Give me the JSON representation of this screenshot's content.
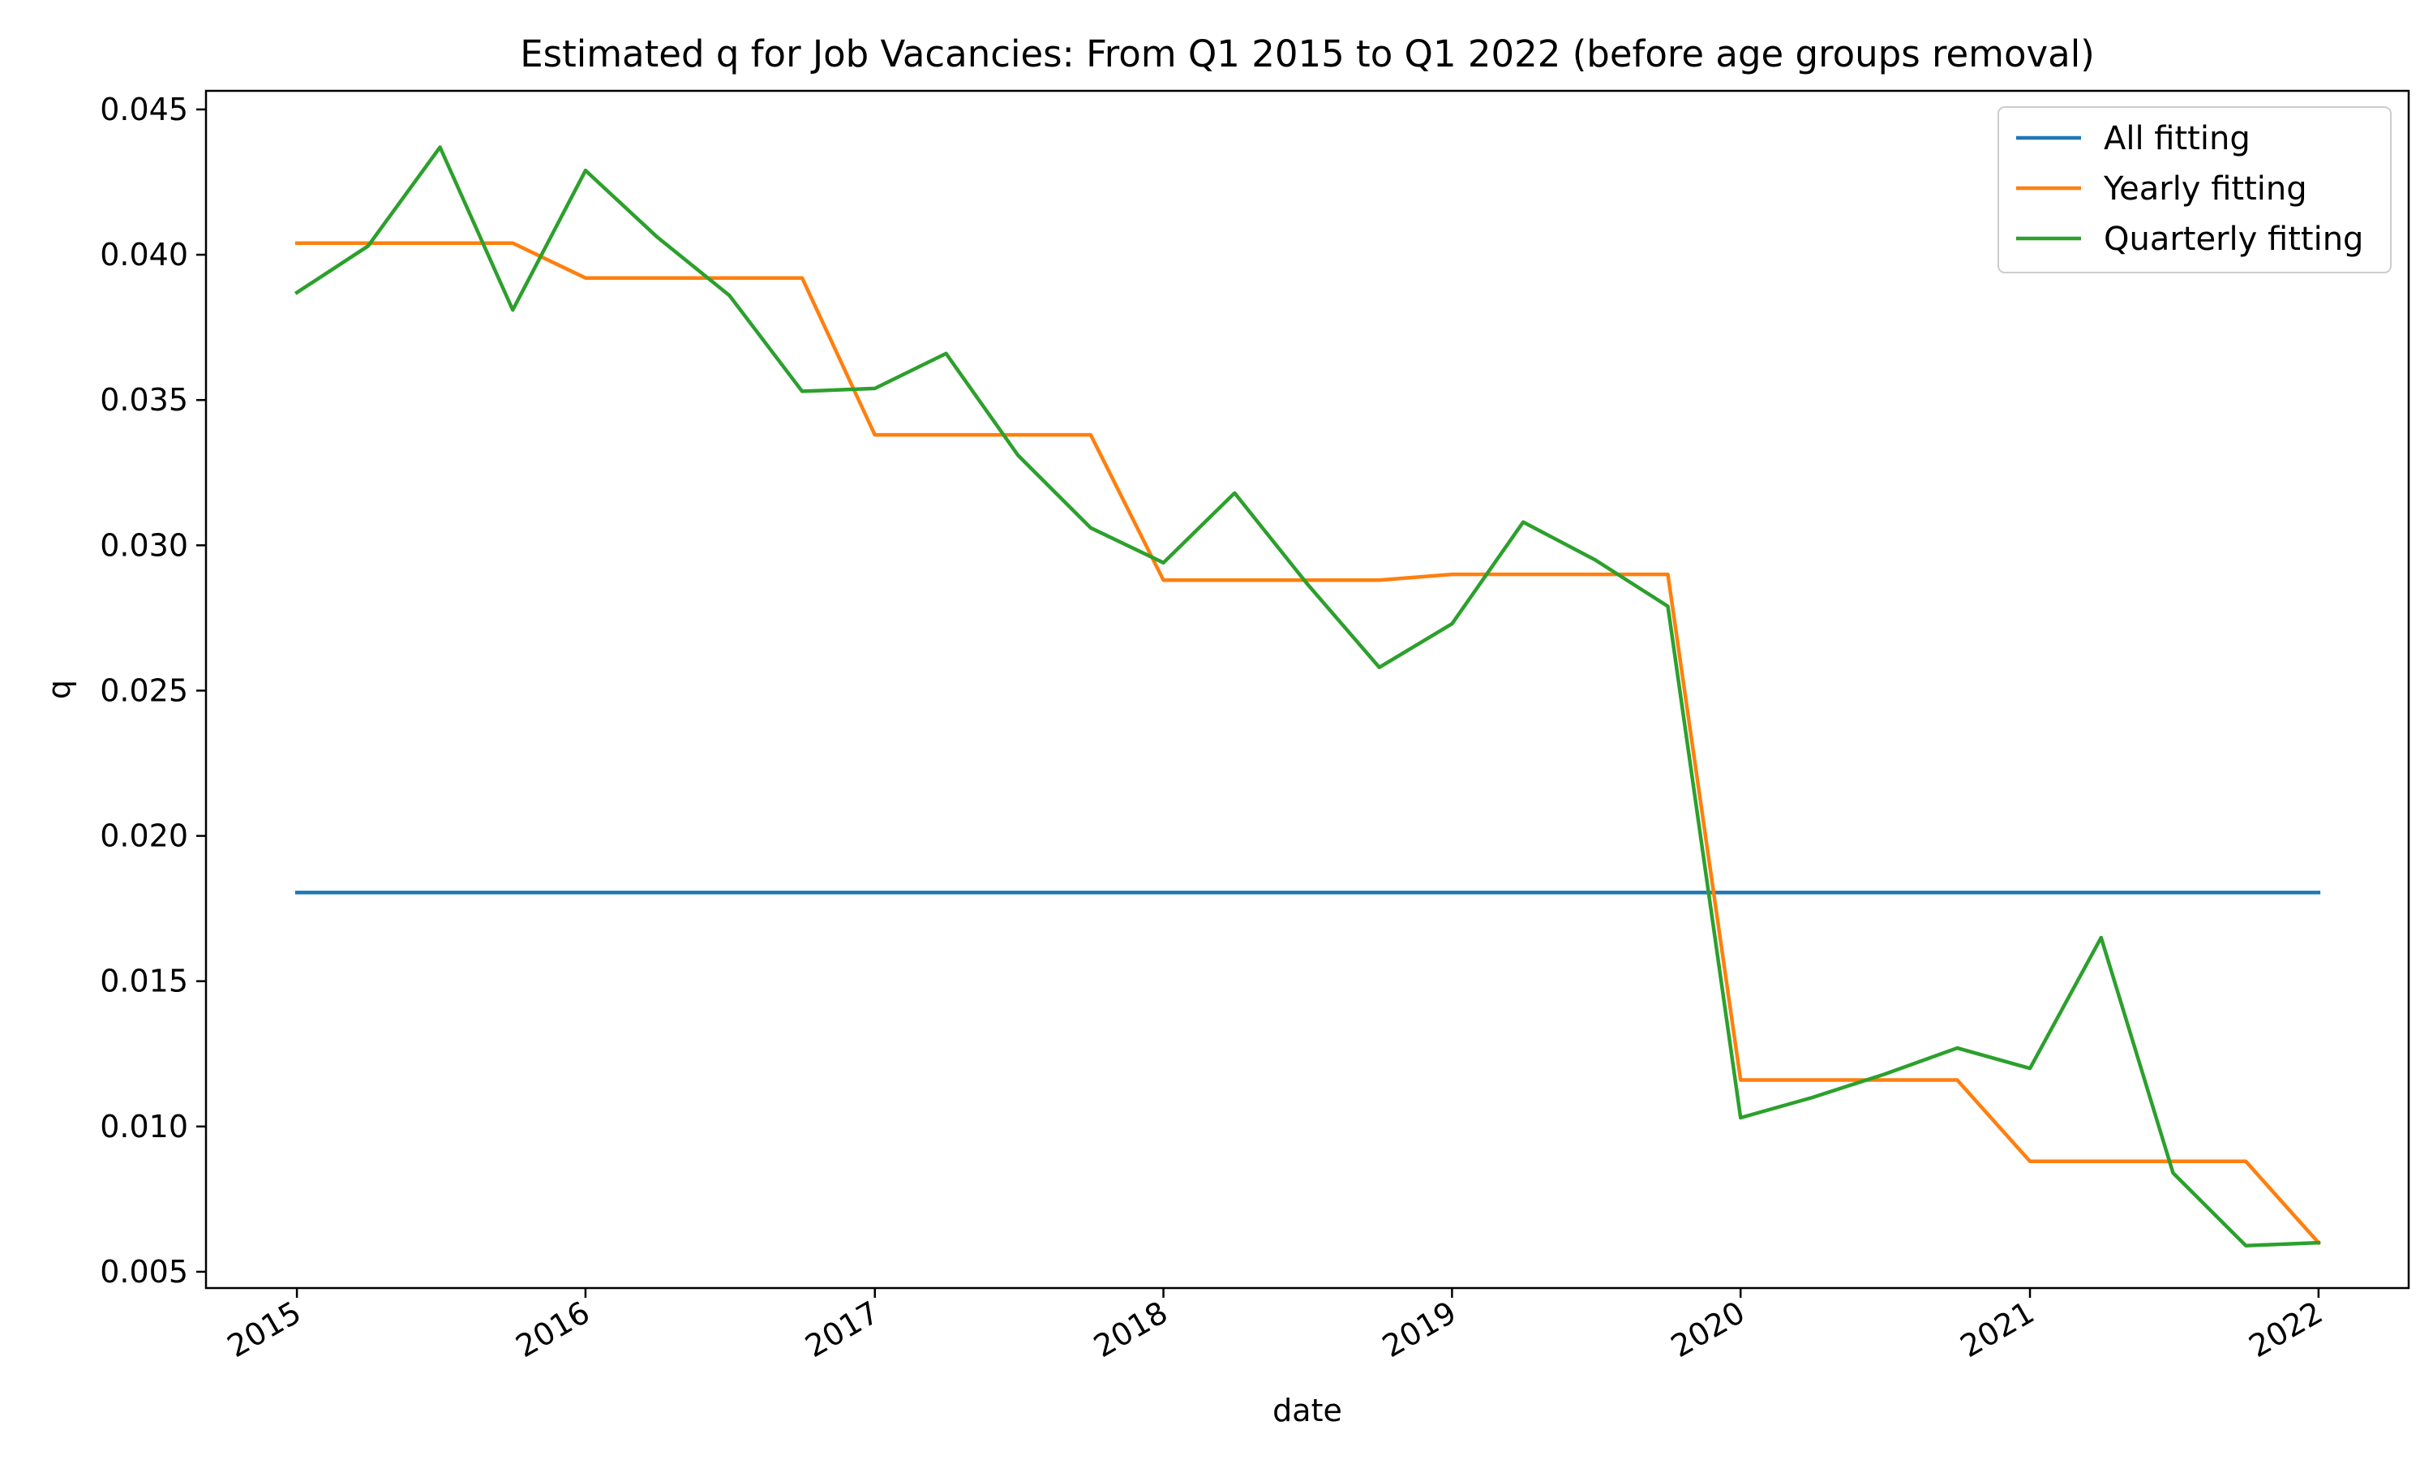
{
  "chart_data": {
    "type": "line",
    "title": "Estimated q for Job Vacancies: From Q1 2015 to Q1 2022 (before age groups removal)",
    "xlabel": "date",
    "ylabel": "q",
    "x_ticks": [
      "2015",
      "2016",
      "2017",
      "2018",
      "2019",
      "2020",
      "2021",
      "2022"
    ],
    "y_ticks": [
      "0.005",
      "0.010",
      "0.015",
      "0.020",
      "0.025",
      "0.030",
      "0.035",
      "0.040",
      "0.045"
    ],
    "xlim": [
      "2014-09-08",
      "2022-04-25"
    ],
    "ylim": [
      0.00444,
      0.04564
    ],
    "grid": false,
    "legend_position": "top-right",
    "x": [
      "2015-01-01",
      "2015-04-01",
      "2015-07-01",
      "2015-10-01",
      "2016-01-01",
      "2016-04-01",
      "2016-07-01",
      "2016-10-01",
      "2017-01-01",
      "2017-04-01",
      "2017-07-01",
      "2017-10-01",
      "2018-01-01",
      "2018-04-01",
      "2018-07-01",
      "2018-10-01",
      "2019-01-01",
      "2019-04-01",
      "2019-07-01",
      "2019-10-01",
      "2020-01-01",
      "2020-04-01",
      "2020-07-01",
      "2020-10-01",
      "2021-01-01",
      "2021-04-01",
      "2021-07-01",
      "2021-10-01",
      "2022-01-01"
    ],
    "series": [
      {
        "name": "All fitting",
        "color": "#1f77b4",
        "values": [
          0.01805,
          0.01805,
          0.01805,
          0.01805,
          0.01805,
          0.01805,
          0.01805,
          0.01805,
          0.01805,
          0.01805,
          0.01805,
          0.01805,
          0.01805,
          0.01805,
          0.01805,
          0.01805,
          0.01805,
          0.01805,
          0.01805,
          0.01805,
          0.01805,
          0.01805,
          0.01805,
          0.01805,
          0.01805,
          0.01805,
          0.01805,
          0.01805,
          0.01805
        ]
      },
      {
        "name": "Yearly fitting",
        "color": "#ff7f0e",
        "values": [
          0.0404,
          0.0404,
          0.0404,
          0.0404,
          0.0392,
          0.0392,
          0.0392,
          0.0392,
          0.0338,
          0.0338,
          0.0338,
          0.0338,
          0.0288,
          0.0288,
          0.0288,
          0.0288,
          0.029,
          0.029,
          0.029,
          0.029,
          0.0116,
          0.0116,
          0.0116,
          0.0116,
          0.0088,
          0.0088,
          0.0088,
          0.0088,
          0.006
        ]
      },
      {
        "name": "Quarterly fitting",
        "color": "#2ca02c",
        "values": [
          0.0387,
          0.0403,
          0.0437,
          0.0381,
          0.0429,
          0.0406,
          0.0386,
          0.0353,
          0.0354,
          0.0366,
          0.0331,
          0.0306,
          0.0294,
          0.0318,
          0.0287,
          0.0258,
          0.0273,
          0.0308,
          0.0295,
          0.0279,
          0.0103,
          0.011,
          0.0118,
          0.0127,
          0.012,
          0.0165,
          0.0084,
          0.0059,
          0.006
        ]
      }
    ]
  }
}
